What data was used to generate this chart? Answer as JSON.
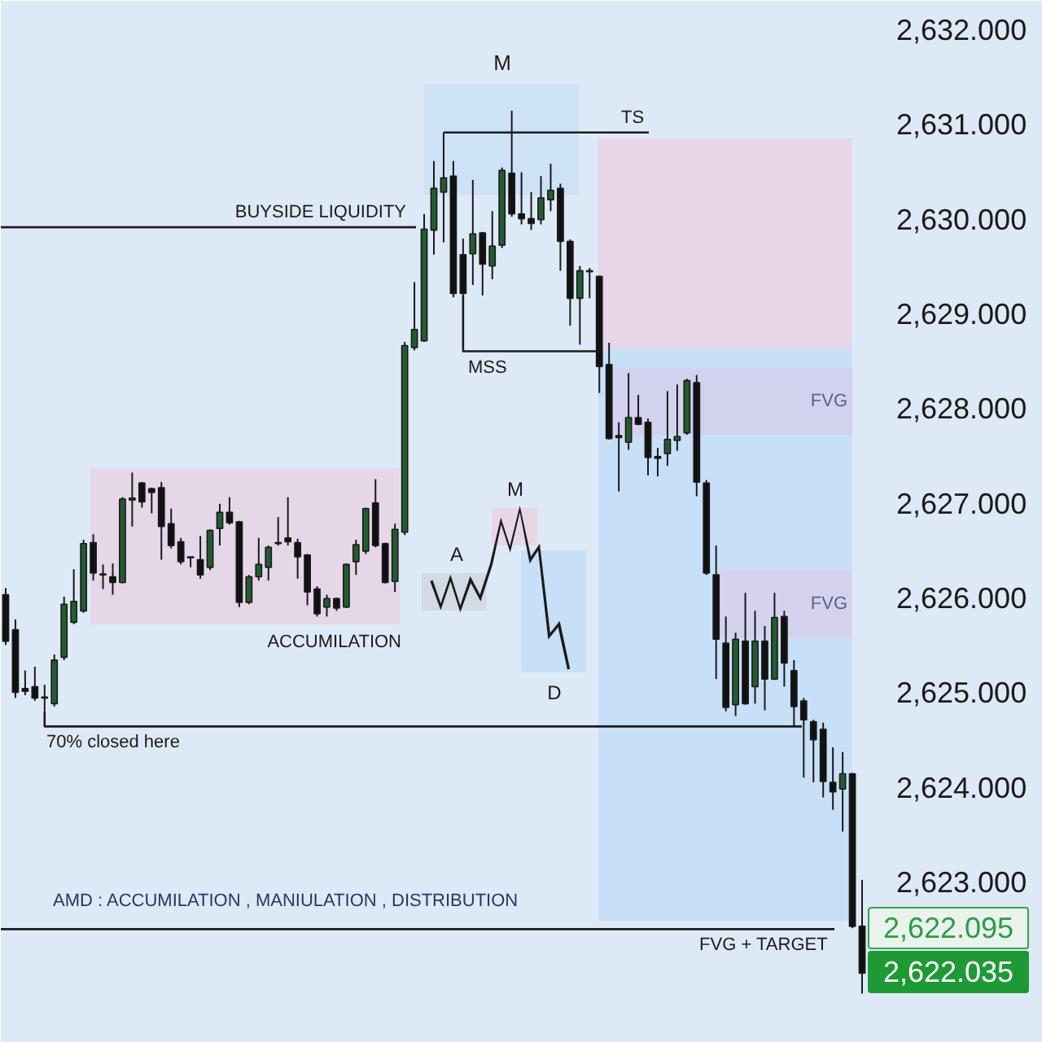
{
  "chart_data": {
    "type": "candlestick",
    "categories": [
      null,
      null,
      null,
      null,
      null,
      null,
      null,
      null,
      null,
      null,
      null,
      null,
      null,
      null,
      null,
      null,
      null,
      null,
      null,
      null,
      null,
      null,
      null,
      null,
      null,
      null,
      null,
      null,
      null,
      null,
      null,
      null,
      null,
      null,
      null,
      null,
      null,
      null,
      null,
      null,
      null,
      null,
      null,
      null,
      null,
      null,
      null,
      null,
      null,
      null,
      null,
      null,
      null,
      null,
      null,
      null,
      null,
      null,
      null,
      null,
      null,
      null,
      null,
      null,
      null,
      null,
      null,
      null,
      null,
      null,
      null,
      null,
      null,
      null,
      null,
      null,
      null,
      null,
      null,
      null,
      null,
      null,
      null,
      null,
      null,
      null,
      null,
      null,
      null
    ],
    "ohlc": [
      [
        2626.03,
        2626.1,
        2625.5,
        2625.54
      ],
      [
        2625.66,
        2625.77,
        2624.94,
        2625.0
      ],
      [
        2625.04,
        2625.23,
        2624.97,
        2625.01
      ],
      [
        2625.06,
        2625.27,
        2624.91,
        2624.94
      ],
      [
        2624.95,
        2625.08,
        2624.8,
        2624.94
      ],
      [
        2624.88,
        2625.4,
        2624.85,
        2625.34
      ],
      [
        2625.37,
        2626.01,
        2625.34,
        2625.93
      ],
      [
        2625.74,
        2626.3,
        2625.72,
        2625.96
      ],
      [
        2625.86,
        2626.61,
        2625.84,
        2626.57
      ],
      [
        2626.58,
        2626.67,
        2626.18,
        2626.26
      ],
      [
        2626.25,
        2626.35,
        2626.09,
        2626.24
      ],
      [
        2626.22,
        2626.36,
        2626.03,
        2626.16
      ],
      [
        2626.16,
        2627.06,
        2626.15,
        2627.04
      ],
      [
        2627.03,
        2627.32,
        2626.75,
        2627.05
      ],
      [
        2627.21,
        2627.22,
        2626.95,
        2627.01
      ],
      [
        2627.15,
        2627.16,
        2626.89,
        2627.11
      ],
      [
        2627.16,
        2627.22,
        2626.4,
        2626.75
      ],
      [
        2626.78,
        2626.94,
        2626.52,
        2626.55
      ],
      [
        2626.59,
        2626.63,
        2626.35,
        2626.38
      ],
      [
        2626.43,
        2626.43,
        2626.32,
        2626.42
      ],
      [
        2626.4,
        2626.65,
        2626.2,
        2626.24
      ],
      [
        2626.32,
        2626.72,
        2626.29,
        2626.71
      ],
      [
        2626.73,
        2626.99,
        2626.55,
        2626.9
      ],
      [
        2626.9,
        2627.06,
        2626.77,
        2626.79
      ],
      [
        2626.8,
        2626.81,
        2625.9,
        2625.95
      ],
      [
        2625.95,
        2626.24,
        2625.93,
        2626.22
      ],
      [
        2626.22,
        2626.63,
        2626.18,
        2626.35
      ],
      [
        2626.32,
        2626.55,
        2626.18,
        2626.53
      ],
      [
        2626.57,
        2626.85,
        2626.55,
        2626.58
      ],
      [
        2626.63,
        2627.06,
        2626.55,
        2626.59
      ],
      [
        2626.58,
        2626.62,
        2626.2,
        2626.43
      ],
      [
        2626.45,
        2626.46,
        2625.92,
        2626.06
      ],
      [
        2626.09,
        2626.12,
        2625.8,
        2625.83
      ],
      [
        2625.9,
        2626.03,
        2625.8,
        2625.99
      ],
      [
        2625.99,
        2626.0,
        2625.86,
        2625.89
      ],
      [
        2625.9,
        2626.36,
        2625.89,
        2626.35
      ],
      [
        2626.38,
        2626.61,
        2626.24,
        2626.56
      ],
      [
        2626.49,
        2626.95,
        2626.46,
        2626.94
      ],
      [
        2627.0,
        2627.25,
        2626.53,
        2626.55
      ],
      [
        2626.57,
        2626.58,
        2626.15,
        2626.16
      ],
      [
        2626.17,
        2626.78,
        2626.06,
        2626.72
      ],
      [
        2626.69,
        2628.7,
        2626.66,
        2628.66
      ],
      [
        2628.64,
        2629.33,
        2628.61,
        2628.83
      ],
      [
        2628.71,
        2630.05,
        2628.7,
        2629.89
      ],
      [
        2629.88,
        2630.61,
        2629.62,
        2630.32
      ],
      [
        2630.28,
        2630.91,
        2629.75,
        2630.43
      ],
      [
        2630.45,
        2630.61,
        2629.17,
        2629.21
      ],
      [
        2629.62,
        2629.79,
        2629.19,
        2629.21
      ],
      [
        2629.63,
        2630.41,
        2629.3,
        2629.84
      ],
      [
        2629.85,
        2629.86,
        2629.19,
        2629.52
      ],
      [
        2629.5,
        2630.08,
        2629.36,
        2629.71
      ],
      [
        2629.72,
        2630.54,
        2629.69,
        2630.51
      ],
      [
        2630.48,
        2631.14,
        2630.02,
        2630.05
      ],
      [
        2630.05,
        2630.49,
        2629.94,
        2630.0
      ],
      [
        2630.0,
        2630.28,
        2629.88,
        2629.95
      ],
      [
        2629.99,
        2630.45,
        2629.94,
        2630.22
      ],
      [
        2630.2,
        2630.58,
        2630.08,
        2630.3
      ],
      [
        2630.32,
        2630.37,
        2629.45,
        2629.76
      ],
      [
        2629.76,
        2629.78,
        2628.87,
        2629.16
      ],
      [
        2629.16,
        2629.5,
        2628.67,
        2629.45
      ],
      [
        2629.44,
        2629.48,
        2629.16,
        2629.45
      ],
      [
        2629.39,
        2629.4,
        2628.16,
        2628.44
      ],
      [
        2628.46,
        2628.69,
        2627.67,
        2627.68
      ],
      [
        2627.71,
        2627.85,
        2627.12,
        2627.69
      ],
      [
        2627.64,
        2628.37,
        2627.56,
        2627.9
      ],
      [
        2627.9,
        2628.14,
        2627.82,
        2627.83
      ],
      [
        2627.85,
        2627.89,
        2627.29,
        2627.48
      ],
      [
        2627.49,
        2627.58,
        2627.28,
        2627.47
      ],
      [
        2627.52,
        2628.18,
        2627.39,
        2627.67
      ],
      [
        2627.66,
        2628.25,
        2627.55,
        2627.7
      ],
      [
        2627.74,
        2628.31,
        2627.72,
        2628.29
      ],
      [
        2628.27,
        2628.35,
        2627.07,
        2627.22
      ],
      [
        2627.21,
        2627.24,
        2626.24,
        2626.26
      ],
      [
        2626.24,
        2626.55,
        2625.14,
        2625.56
      ],
      [
        2625.52,
        2625.8,
        2624.8,
        2624.84
      ],
      [
        2624.87,
        2625.63,
        2624.75,
        2625.56
      ],
      [
        2625.54,
        2626.05,
        2624.87,
        2624.88
      ],
      [
        2625.06,
        2625.86,
        2624.88,
        2625.54
      ],
      [
        2625.54,
        2625.7,
        2624.81,
        2625.14
      ],
      [
        2625.14,
        2626.05,
        2625.13,
        2625.79
      ],
      [
        2625.8,
        2625.86,
        2625.06,
        2625.31
      ],
      [
        2625.23,
        2625.34,
        2624.65,
        2624.85
      ],
      [
        2624.91,
        2624.94,
        2624.1,
        2624.71
      ],
      [
        2624.69,
        2624.71,
        2624.05,
        2624.5
      ],
      [
        2624.61,
        2624.68,
        2623.89,
        2624.06
      ],
      [
        2624.05,
        2624.42,
        2623.76,
        2623.95
      ],
      [
        2623.98,
        2624.37,
        2623.53,
        2624.14
      ],
      [
        2624.14,
        2624.15,
        2622.51,
        2622.53
      ],
      [
        2622.53,
        2623.02,
        2621.82,
        2622.035
      ]
    ],
    "colors": [
      "#111111",
      "#111111",
      "#111111",
      "#111111",
      "#111111",
      "#245c31",
      "#245c31",
      "#245c31",
      "#245c31",
      "#111111",
      "#111111",
      "#111111",
      "#245c31",
      "#245c31",
      "#111111",
      "#111111",
      "#111111",
      "#111111",
      "#111111",
      "#111111",
      "#111111",
      "#245c31",
      "#245c31",
      "#111111",
      "#111111",
      "#245c31",
      "#245c31",
      "#245c31",
      "#245c31",
      "#111111",
      "#111111",
      "#111111",
      "#111111",
      "#245c31",
      "#111111",
      "#245c31",
      "#245c31",
      "#245c31",
      "#111111",
      "#111111",
      "#245c31",
      "#245c31",
      "#245c31",
      "#245c31",
      "#245c31",
      "#245c31",
      "#111111",
      "#111111",
      "#245c31",
      "#111111",
      "#245c31",
      "#245c31",
      "#111111",
      "#111111",
      "#111111",
      "#245c31",
      "#245c31",
      "#111111",
      "#111111",
      "#245c31",
      "#245c31",
      "#111111",
      "#111111",
      "#111111",
      "#245c31",
      "#111111",
      "#111111",
      "#111111",
      "#245c31",
      "#245c31",
      "#245c31",
      "#111111",
      "#111111",
      "#111111",
      "#111111",
      "#245c31",
      "#111111",
      "#245c31",
      "#111111",
      "#245c31",
      "#111111",
      "#111111",
      "#111111",
      "#111111",
      "#111111",
      "#111111",
      "#245c31",
      "#111111",
      "#111111"
    ],
    "ylim": [
      2621.3,
      2632.3
    ],
    "yticks": [
      {
        "value": 2623,
        "label": "2,623.000"
      },
      {
        "value": 2624,
        "label": "2,624.000"
      },
      {
        "value": 2625,
        "label": "2,625.000"
      },
      {
        "value": 2626,
        "label": "2,626.000"
      },
      {
        "value": 2627,
        "label": "2,627.000"
      },
      {
        "value": 2628,
        "label": "2,628.000"
      },
      {
        "value": 2629,
        "label": "2,629.000"
      },
      {
        "value": 2630,
        "label": "2,630.000"
      },
      {
        "value": 2631,
        "label": "2,631.000"
      },
      {
        "value": 2632,
        "label": "2,632.000"
      }
    ],
    "tick_labels": "y",
    "grid": false,
    "bands": [
      {
        "axis": "y",
        "from": 2625.72,
        "to": 2627.36,
        "label": "ACCUMILATION",
        "color": "#e5d6e8"
      },
      {
        "axis": "y",
        "from": 2630.25,
        "to": 2631.42,
        "label": "M",
        "color": "#cde1f7"
      },
      {
        "axis": "y",
        "from": 2628.62,
        "to": 2630.85,
        "color": "#e6d6e8"
      },
      {
        "axis": "y",
        "from": 2622.59,
        "to": 2628.62,
        "color": "#c8dff8"
      },
      {
        "axis": "y",
        "from": 2627.72,
        "to": 2628.42,
        "label": "FVG",
        "color": "#d2d1ee"
      },
      {
        "axis": "y",
        "from": 2625.57,
        "to": 2626.29,
        "label": "FVG",
        "color": "#d5d2ee"
      }
    ],
    "ref_lines": [
      {
        "axis": "y",
        "value": 2629.91,
        "label": "BUYSIDE LIQUIDITY",
        "color": "#1c1c1c"
      },
      {
        "axis": "y",
        "value": 2630.91,
        "label": "TS",
        "color": "#1c1c1c"
      },
      {
        "axis": "y",
        "value": 2628.6,
        "label": "MSS",
        "color": "#1c1c1c"
      },
      {
        "axis": "y",
        "value": 2624.64,
        "label": "70% closed here",
        "color": "#1c1c1c"
      },
      {
        "axis": "y",
        "value": 2622.5,
        "label": "FVG + TARGET",
        "color": "#1c1c1c"
      }
    ],
    "annotations": [
      "AMD : ACCUMILATION  , MANIULATION , DISTRIBUTION",
      "A",
      "M",
      "D",
      "2,622.095",
      "2,622.035"
    ]
  }
}
